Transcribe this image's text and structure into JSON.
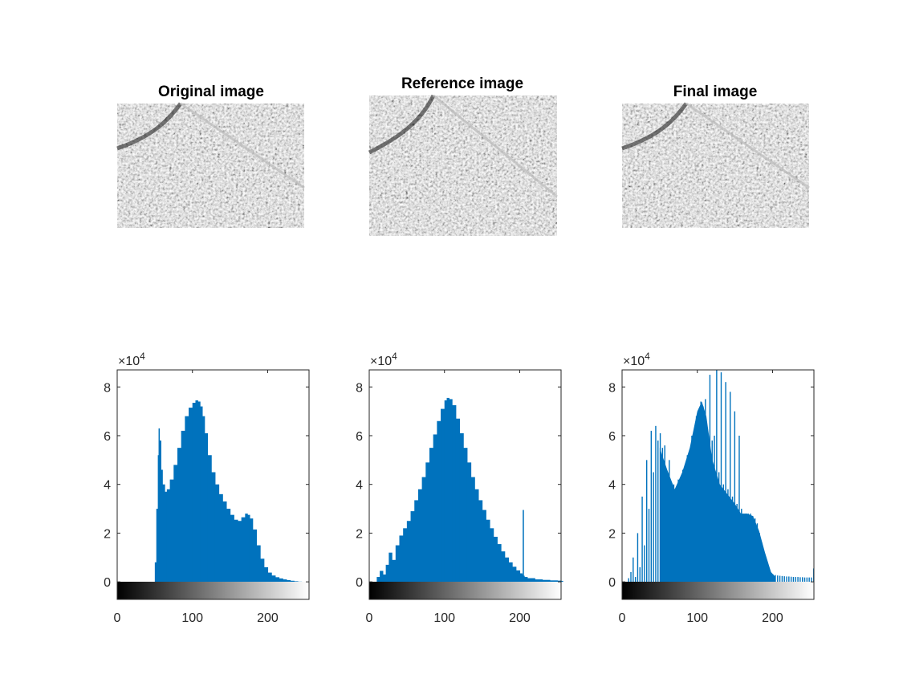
{
  "figure": {
    "panels": [
      {
        "title": "Original image"
      },
      {
        "title": "Reference image"
      },
      {
        "title": "Final image"
      }
    ]
  },
  "colors": {
    "bar": "#0072bd",
    "axis": "#262626"
  },
  "icons": {
    "times": "×"
  },
  "chart_data": [
    {
      "type": "bar",
      "title": "",
      "xlabel": "",
      "ylabel": "",
      "xlim": [
        0,
        255
      ],
      "ylim": [
        0,
        87000
      ],
      "y_exponent_label": {
        "base": "×10",
        "exponent": "4"
      },
      "xticks": [
        0,
        100,
        200
      ],
      "yticks": [
        0,
        20000,
        40000,
        60000,
        80000
      ],
      "xtick_labels": [
        "0",
        "100",
        "200"
      ],
      "ytick_labels": [
        "0",
        "2",
        "4",
        "6",
        "8"
      ],
      "colorbar": "gray",
      "x": [
        48,
        50,
        52,
        54,
        55,
        56,
        58,
        60,
        63,
        66,
        70,
        75,
        80,
        85,
        90,
        95,
        100,
        104,
        107,
        110,
        113,
        116,
        120,
        125,
        130,
        135,
        140,
        145,
        150,
        155,
        160,
        165,
        170,
        173,
        176,
        180,
        185,
        190,
        195,
        200,
        205,
        210,
        215,
        220,
        225,
        230,
        235,
        240,
        245
      ],
      "values": [
        0,
        8000,
        30000,
        52000,
        63000,
        58000,
        46000,
        40000,
        37000,
        38000,
        42000,
        48000,
        55000,
        62000,
        68000,
        71500,
        73500,
        74500,
        74000,
        72000,
        68000,
        61000,
        52000,
        45000,
        40000,
        36000,
        33000,
        30000,
        27500,
        25500,
        25000,
        26500,
        28000,
        27500,
        26000,
        21500,
        15000,
        9500,
        6000,
        3800,
        2600,
        1900,
        1400,
        1000,
        700,
        450,
        250,
        100,
        0
      ]
    },
    {
      "type": "bar",
      "title": "",
      "xlabel": "",
      "ylabel": "",
      "xlim": [
        0,
        255
      ],
      "ylim": [
        0,
        87000
      ],
      "y_exponent_label": {
        "base": "×10",
        "exponent": "4"
      },
      "xticks": [
        0,
        100,
        200
      ],
      "yticks": [
        0,
        20000,
        40000,
        60000,
        80000
      ],
      "xtick_labels": [
        "0",
        "100",
        "200"
      ],
      "ytick_labels": [
        "0",
        "2",
        "4",
        "6",
        "8"
      ],
      "colorbar": "gray",
      "x": [
        8,
        10,
        14,
        18,
        22,
        26,
        30,
        35,
        40,
        45,
        50,
        55,
        60,
        65,
        70,
        75,
        80,
        85,
        90,
        95,
        100,
        103,
        106,
        110,
        115,
        120,
        125,
        130,
        135,
        140,
        145,
        150,
        155,
        160,
        165,
        170,
        175,
        180,
        185,
        190,
        195,
        200,
        203,
        204,
        205,
        206,
        210,
        220,
        230,
        240,
        250,
        255
      ],
      "values": [
        0,
        2000,
        4500,
        3000,
        7000,
        12000,
        9000,
        15000,
        19000,
        22000,
        25000,
        29000,
        33500,
        38000,
        43000,
        49000,
        55000,
        60500,
        66000,
        71000,
        74500,
        75500,
        75000,
        72500,
        67000,
        61000,
        55000,
        49000,
        43000,
        38000,
        33500,
        29500,
        25500,
        22000,
        18500,
        15500,
        12500,
        10000,
        8000,
        6200,
        4700,
        3500,
        3000,
        29500,
        2500,
        2000,
        1500,
        1000,
        800,
        600,
        500,
        400
      ]
    },
    {
      "type": "bar",
      "title": "",
      "xlabel": "",
      "ylabel": "",
      "xlim": [
        0,
        255
      ],
      "ylim": [
        0,
        87000
      ],
      "y_exponent_label": {
        "base": "×10",
        "exponent": "4"
      },
      "xticks": [
        0,
        100,
        200
      ],
      "yticks": [
        0,
        20000,
        40000,
        60000,
        80000
      ],
      "xtick_labels": [
        "0",
        "100",
        "200"
      ],
      "ytick_labels": [
        "0",
        "2",
        "4",
        "6",
        "8"
      ],
      "colorbar": "gray",
      "x": [
        8,
        11,
        14,
        17,
        20,
        23,
        26,
        29,
        32,
        35,
        38,
        41,
        44,
        47,
        50,
        53,
        56,
        59,
        62,
        65,
        68,
        71,
        74,
        77,
        80,
        83,
        86,
        89,
        92,
        95,
        98,
        101,
        104,
        107,
        110,
        113,
        116,
        119,
        122,
        125,
        128,
        131,
        134,
        137,
        140,
        143,
        146,
        149,
        152,
        155,
        158,
        161,
        164,
        167,
        170,
        173,
        176,
        179,
        182,
        185,
        188,
        191,
        194,
        197,
        200,
        203,
        206,
        209,
        212,
        215,
        218,
        221,
        224,
        227,
        230,
        233,
        236,
        239,
        242,
        245,
        248,
        251,
        254
      ],
      "values": [
        1500,
        4000,
        10000,
        2000,
        20000,
        6000,
        35000,
        15000,
        50000,
        30000,
        62000,
        45000,
        64000,
        58000,
        61000,
        55000,
        56000,
        44000,
        50000,
        38000,
        40000,
        35000,
        42000,
        40000,
        46000,
        44000,
        52000,
        50000,
        60000,
        58000,
        68000,
        65000,
        74000,
        72000,
        75000,
        60000,
        85000,
        58000,
        60000,
        87000,
        45000,
        86000,
        40000,
        82000,
        38000,
        78000,
        35000,
        70000,
        32000,
        60000,
        30000,
        27000,
        28000,
        28000,
        28000,
        27000,
        26000,
        24000,
        20000,
        16000,
        12000,
        8000,
        5000,
        3500,
        3000,
        2800,
        2600,
        2500,
        2400,
        2300,
        2200,
        2200,
        2100,
        2000,
        2000,
        2000,
        1900,
        1900,
        1800,
        1800,
        1800,
        1800,
        5500
      ]
    }
  ]
}
